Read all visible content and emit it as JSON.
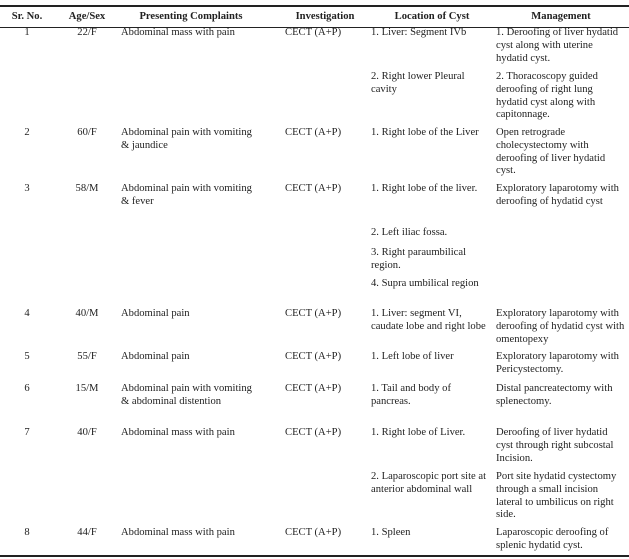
{
  "table": {
    "headers": [
      "Sr. No.",
      "Age/Sex",
      "Presenting Complaints",
      "Investigation",
      "Location of Cyst",
      "Management"
    ],
    "rows": [
      {
        "sr": "1",
        "age": "22/F",
        "complaint": "Abdominal mass with pain",
        "investigation": "CECT (A+P)",
        "locations": [
          "1. Liver: Segment IVb",
          "2. Right lower Pleural cavity"
        ],
        "management": [
          "1. Deroofing of liver hydatid cyst along with uterine hydatid cyst.",
          "2. Thoracoscopy guided deroofing of right lung hydatid cyst along with capitonnage."
        ]
      },
      {
        "sr": "2",
        "age": "60/F",
        "complaint": "Abdominal pain with vomiting & jaundice",
        "investigation": "CECT (A+P)",
        "locations": [
          "1. Right lobe of the Liver"
        ],
        "management": [
          "Open retrograde cholecystectomy with deroofing of liver hydatid cyst."
        ]
      },
      {
        "sr": "3",
        "age": "58/M",
        "complaint": "Abdominal pain with vomiting & fever",
        "investigation": "CECT (A+P)",
        "locations": [
          "1. Right lobe of the liver.",
          "2. Left iliac fossa.",
          "3. Right paraumbilical region.",
          "4. Supra umbilical region"
        ],
        "management": [
          "Exploratory laparotomy with deroofing of hydatid cyst"
        ]
      },
      {
        "sr": "4",
        "age": "40/M",
        "complaint": "Abdominal pain",
        "investigation": "CECT (A+P)",
        "locations": [
          "1. Liver: segment VI, caudate lobe and right lobe"
        ],
        "management": [
          "Exploratory laparotomy with deroofing of hydatid cyst with omentopexy"
        ]
      },
      {
        "sr": "5",
        "age": "55/F",
        "complaint": "Abdominal pain",
        "investigation": "CECT (A+P)",
        "locations": [
          "1. Left lobe of liver"
        ],
        "management": [
          "Exploratory laparotomy with Pericystectomy."
        ]
      },
      {
        "sr": "6",
        "age": "15/M",
        "complaint": "Abdominal pain with vomiting & abdominal distention",
        "investigation": "CECT (A+P)",
        "locations": [
          "1. Tail and body of pancreas."
        ],
        "management": [
          "Distal pancreatectomy with splenectomy."
        ]
      },
      {
        "sr": "7",
        "age": "40/F",
        "complaint": "Abdominal mass with pain",
        "investigation": "CECT (A+P)",
        "locations": [
          "1. Right lobe of Liver.",
          "2. Laparoscopic port site at anterior abdominal wall"
        ],
        "management": [
          "Deroofing of liver hydatid cyst through right subcostal Incision.",
          "Port site hydatid cystectomy through a small incision lateral to umbilicus on right side."
        ]
      },
      {
        "sr": "8",
        "age": "44/F",
        "complaint": "Abdominal mass with pain",
        "investigation": "CECT (A+P)",
        "locations": [
          "1. Spleen"
        ],
        "management": [
          "Laparoscopic deroofing of splenic hydatid cyst."
        ]
      }
    ]
  }
}
